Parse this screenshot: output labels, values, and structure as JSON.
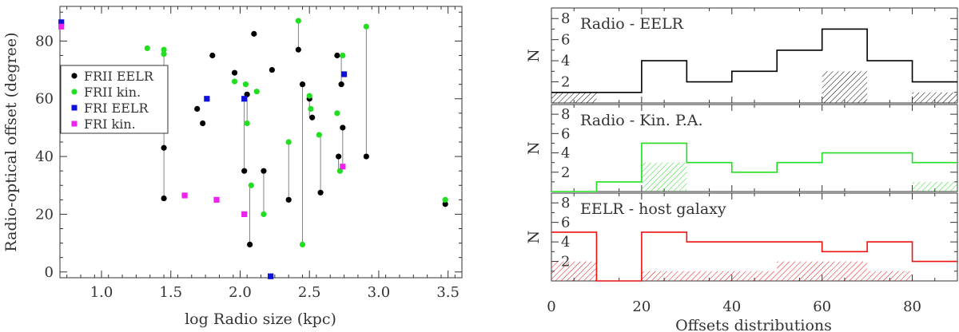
{
  "chart_data": [
    {
      "type": "scatter",
      "xlabel": "log Radio size (kpc)",
      "ylabel": "Radio-optical offset (degree)",
      "xlim": [
        0.7,
        3.6
      ],
      "ylim": [
        -2,
        92
      ],
      "xticks": [
        1.0,
        1.5,
        2.0,
        2.5,
        3.0,
        3.5
      ],
      "xtick_labels": [
        "1.0",
        "1.5",
        "2.0",
        "2.5",
        "3.0",
        "3.5"
      ],
      "yticks": [
        0,
        20,
        40,
        60,
        80
      ],
      "ytick_labels": [
        "0",
        "20",
        "40",
        "60",
        "80"
      ],
      "legend": {
        "position": "upper-left",
        "entries": [
          {
            "label": "FRII EELR",
            "color": "#000000",
            "marker": "circle"
          },
          {
            "label": "FRII kin.",
            "color": "#22dd22",
            "marker": "circle"
          },
          {
            "label": "FRI EELR",
            "color": "#1010dd",
            "marker": "square"
          },
          {
            "label": "FRI kin.",
            "color": "#ee22ee",
            "marker": "square"
          }
        ]
      },
      "connectors": [
        [
          [
            1.45,
            43
          ],
          [
            1.45,
            25.5
          ]
        ],
        [
          [
            1.45,
            43
          ],
          [
            1.45,
            76
          ]
        ],
        [
          [
            2.03,
            35
          ],
          [
            2.03,
            60
          ]
        ],
        [
          [
            2.05,
            61.5
          ],
          [
            2.05,
            51.5
          ]
        ],
        [
          [
            2.07,
            9.5
          ],
          [
            2.07,
            30
          ]
        ],
        [
          [
            2.17,
            35
          ],
          [
            2.17,
            20
          ]
        ],
        [
          [
            2.35,
            25
          ],
          [
            2.35,
            45
          ]
        ],
        [
          [
            2.42,
            77
          ],
          [
            2.42,
            87
          ]
        ],
        [
          [
            2.45,
            65
          ],
          [
            2.45,
            9.5
          ]
        ],
        [
          [
            2.5,
            60
          ],
          [
            2.5,
            53.5
          ]
        ],
        [
          [
            2.58,
            27.5
          ],
          [
            2.58,
            47.5
          ]
        ],
        [
          [
            2.71,
            40
          ],
          [
            2.71,
            35
          ]
        ],
        [
          [
            2.73,
            65
          ],
          [
            2.73,
            75
          ]
        ],
        [
          [
            2.74,
            50
          ],
          [
            2.74,
            36.5
          ]
        ],
        [
          [
            2.91,
            40
          ],
          [
            2.91,
            85
          ]
        ]
      ],
      "series": [
        {
          "name": "FRII EELR",
          "color": "#000000",
          "marker": "circle",
          "points": [
            [
              1.45,
              43
            ],
            [
              1.45,
              25.5
            ],
            [
              1.69,
              56.5
            ],
            [
              1.73,
              51.5
            ],
            [
              1.8,
              75
            ],
            [
              1.96,
              69
            ],
            [
              2.03,
              35
            ],
            [
              2.05,
              61.5
            ],
            [
              2.07,
              9.5
            ],
            [
              2.1,
              82.5
            ],
            [
              2.17,
              35
            ],
            [
              2.23,
              70
            ],
            [
              2.35,
              25
            ],
            [
              2.42,
              77
            ],
            [
              2.45,
              65
            ],
            [
              2.5,
              60
            ],
            [
              2.52,
              53.5
            ],
            [
              2.58,
              27.5
            ],
            [
              2.7,
              75
            ],
            [
              2.71,
              40
            ],
            [
              2.73,
              65
            ],
            [
              2.74,
              50
            ],
            [
              2.91,
              40
            ],
            [
              3.48,
              23.5
            ]
          ]
        },
        {
          "name": "FRII kin.",
          "color": "#22dd22",
          "marker": "circle",
          "points": [
            [
              1.33,
              77.5
            ],
            [
              1.45,
              77
            ],
            [
              1.45,
              75.5
            ],
            [
              1.96,
              66
            ],
            [
              2.04,
              65
            ],
            [
              2.05,
              51.5
            ],
            [
              2.08,
              30
            ],
            [
              2.12,
              62.5
            ],
            [
              2.17,
              20
            ],
            [
              2.35,
              45
            ],
            [
              2.42,
              87
            ],
            [
              2.45,
              9.5
            ],
            [
              2.5,
              61
            ],
            [
              2.51,
              56.5
            ],
            [
              2.57,
              47.5
            ],
            [
              2.7,
              55
            ],
            [
              2.72,
              35
            ],
            [
              2.74,
              75
            ],
            [
              2.91,
              85
            ],
            [
              3.48,
              25
            ]
          ]
        },
        {
          "name": "FRI EELR",
          "color": "#1010dd",
          "marker": "square",
          "points": [
            [
              0.71,
              86.5
            ],
            [
              1.76,
              60
            ],
            [
              2.03,
              60
            ],
            [
              2.22,
              -1.5
            ],
            [
              2.75,
              68.5
            ]
          ]
        },
        {
          "name": "FRI kin.",
          "color": "#ee22ee",
          "marker": "square",
          "points": [
            [
              0.71,
              85
            ],
            [
              1.6,
              26.5
            ],
            [
              1.83,
              25
            ],
            [
              2.03,
              20
            ],
            [
              2.74,
              36.5
            ]
          ]
        }
      ]
    },
    {
      "type": "histogram",
      "xlabel": "Offsets distributions",
      "xlim": [
        0,
        90
      ],
      "xticks": [
        0,
        20,
        40,
        60,
        80
      ],
      "xtick_labels": [
        "0",
        "20",
        "40",
        "60",
        "80"
      ],
      "bin_edges": [
        0,
        10,
        20,
        30,
        40,
        50,
        60,
        70,
        80,
        90
      ],
      "panels": [
        {
          "title": "Radio - EELR",
          "ylabel": "N",
          "color": "#000000",
          "ylim": [
            0,
            9
          ],
          "yticks": [
            2,
            4,
            6,
            8
          ],
          "ytick_labels": [
            "2",
            "4",
            "6",
            "8"
          ],
          "counts": [
            1,
            1,
            4,
            2,
            3,
            5,
            7,
            4,
            2
          ],
          "hatched_counts": [
            1,
            0,
            0,
            0,
            0,
            0,
            3,
            0,
            1
          ]
        },
        {
          "title": "Radio - Kin. P.A.",
          "ylabel": "N",
          "color": "#22dd22",
          "ylim": [
            0,
            9
          ],
          "yticks": [
            2,
            4,
            6,
            8
          ],
          "ytick_labels": [
            "2",
            "4",
            "6",
            "8"
          ],
          "counts": [
            0,
            1,
            5,
            3,
            2,
            3,
            4,
            4,
            3
          ],
          "hatched_counts": [
            0,
            0,
            3,
            0,
            0,
            0,
            0,
            0,
            1
          ]
        },
        {
          "title": "EELR - host galaxy",
          "ylabel": "N",
          "color": "#ee1111",
          "ylim": [
            0,
            9
          ],
          "yticks": [
            2,
            4,
            6,
            8
          ],
          "ytick_labels": [
            "2",
            "4",
            "6",
            "8"
          ],
          "counts": [
            5,
            0,
            5,
            4,
            4,
            4,
            3,
            4,
            2
          ],
          "hatched_counts": [
            2,
            0,
            1,
            1,
            1,
            2,
            2,
            1,
            0
          ]
        }
      ]
    }
  ]
}
